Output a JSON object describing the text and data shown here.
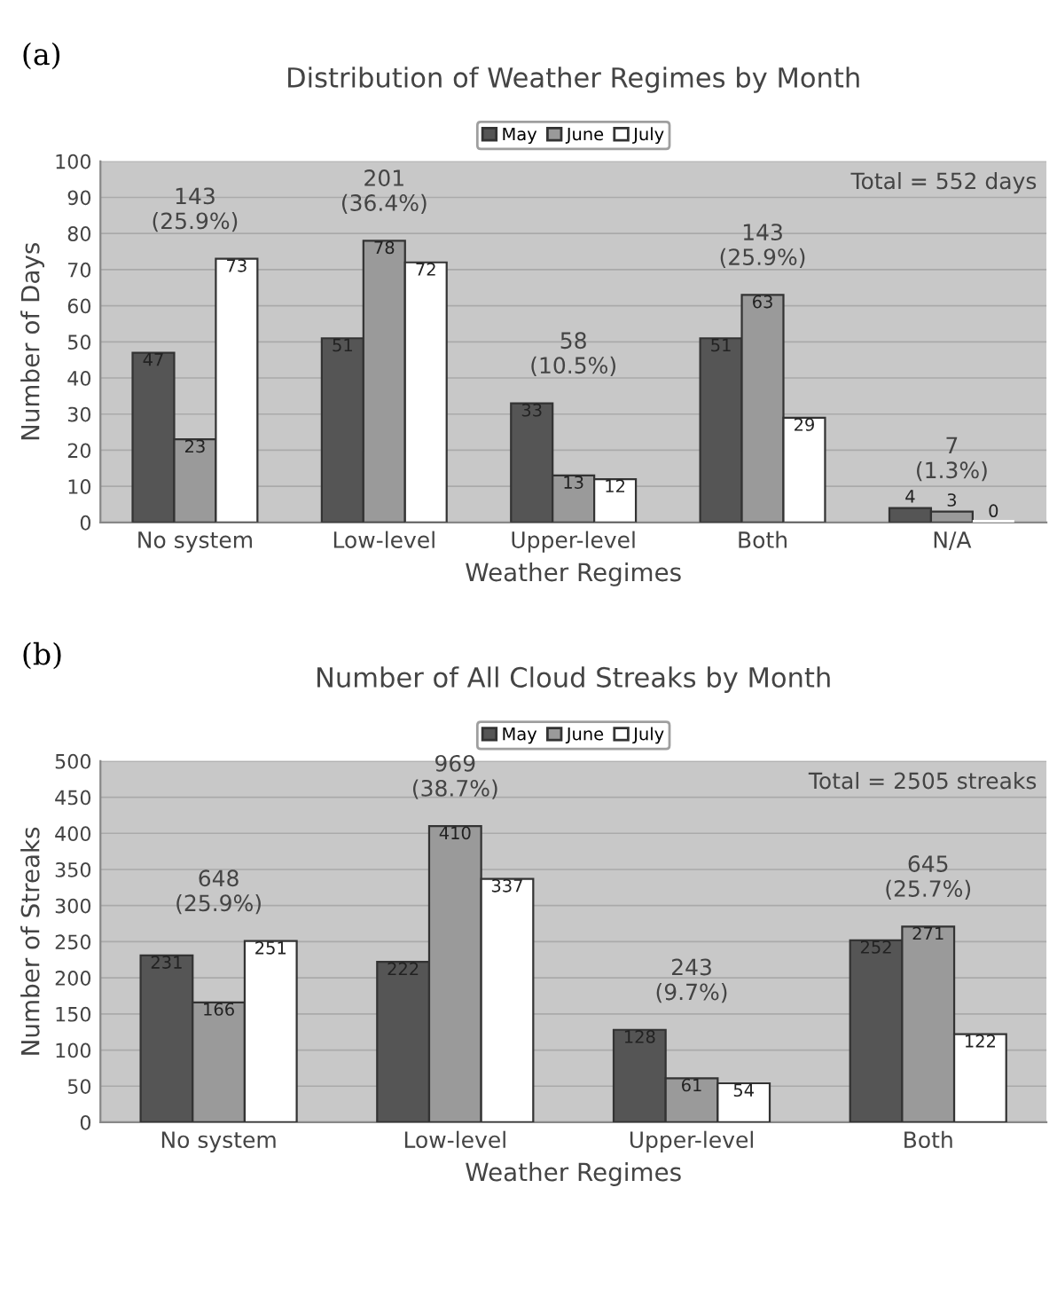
{
  "chart_data": [
    {
      "type": "bar",
      "title": "Distribution of Weather Regimes by Month",
      "xlabel": "Weather Regimes",
      "ylabel": "Number of Days",
      "categories": [
        "No system",
        "Low-level",
        "Upper-level",
        "Both",
        "N/A"
      ],
      "series": [
        {
          "name": "May",
          "color": "#555555",
          "values": [
            47,
            51,
            33,
            51,
            4
          ]
        },
        {
          "name": "June",
          "color": "#9a9a9a",
          "values": [
            23,
            78,
            13,
            63,
            3
          ]
        },
        {
          "name": "July",
          "color": "#ffffff",
          "values": [
            73,
            72,
            12,
            29,
            0
          ]
        }
      ],
      "ylim": [
        0,
        100
      ],
      "yticks": [
        0,
        10,
        20,
        30,
        40,
        50,
        60,
        70,
        80,
        90,
        100
      ],
      "grid": "y",
      "legend": "top",
      "data_labels": true,
      "annotations": [
        "(a)",
        "Total = 552 days",
        "143\n(25.9%)",
        "201\n(36.4%)",
        "58\n(10.5%)",
        "143\n(25.9%)",
        "7\n(1.3%)"
      ]
    },
    {
      "type": "bar",
      "title": "Number of All Cloud Streaks by Month",
      "xlabel": "Weather Regimes",
      "ylabel": "Number of Streaks",
      "categories": [
        "No system",
        "Low-level",
        "Upper-level",
        "Both"
      ],
      "series": [
        {
          "name": "May",
          "color": "#555555",
          "values": [
            231,
            222,
            128,
            252
          ]
        },
        {
          "name": "June",
          "color": "#9a9a9a",
          "values": [
            166,
            410,
            61,
            271
          ]
        },
        {
          "name": "July",
          "color": "#ffffff",
          "values": [
            251,
            337,
            54,
            122
          ]
        }
      ],
      "ylim": [
        0,
        500
      ],
      "yticks": [
        0,
        50,
        100,
        150,
        200,
        250,
        300,
        350,
        400,
        450,
        500
      ],
      "grid": "y",
      "legend": "top",
      "data_labels": true,
      "annotations": [
        "(b)",
        "Total = 2505 streaks",
        "648\n(25.9%)",
        "969\n(38.7%)",
        "243\n(9.7%)",
        "645\n(25.7%)"
      ]
    }
  ]
}
